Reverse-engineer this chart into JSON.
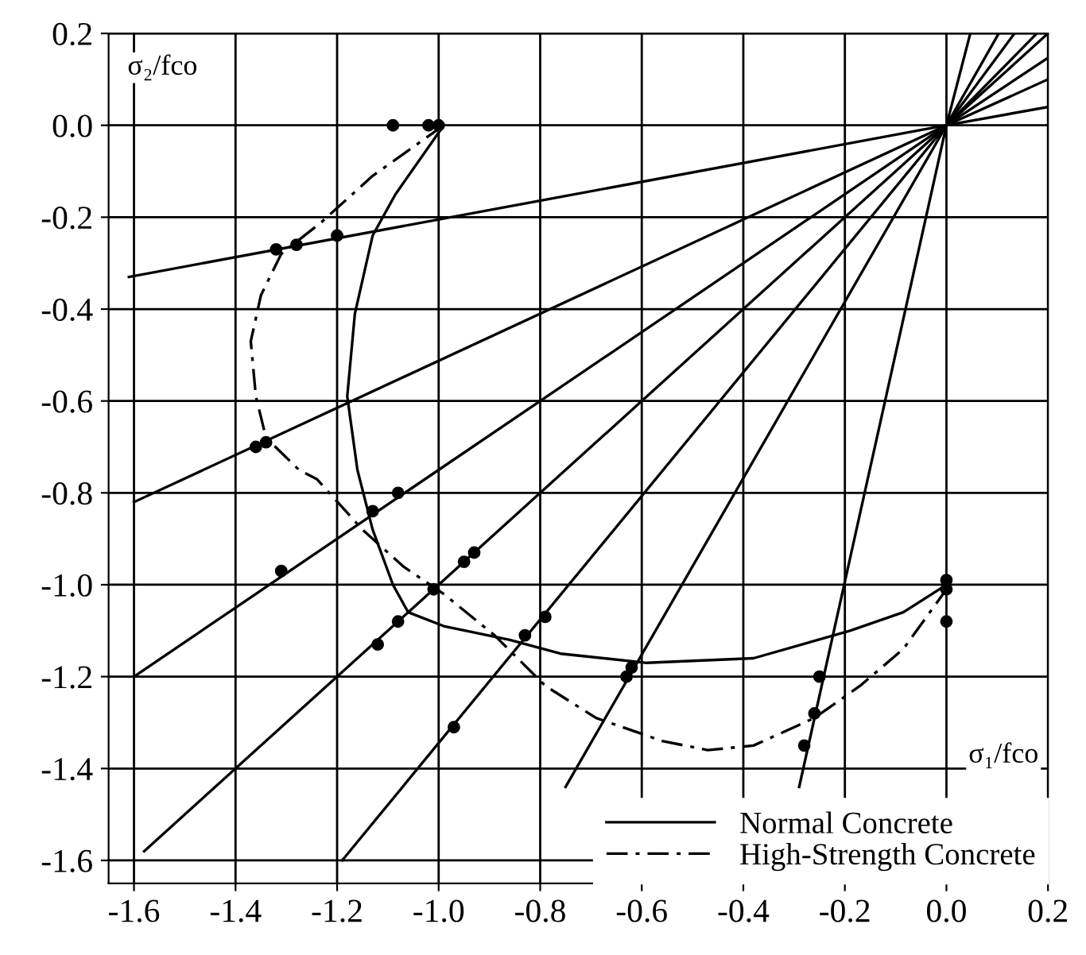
{
  "chart_data": {
    "type": "line",
    "xlabel": "σ₁/fco",
    "ylabel": "σ₂/fco",
    "xlim": [
      -1.65,
      0.2
    ],
    "ylim": [
      -1.65,
      0.2
    ],
    "xticks": [
      {
        "value": -1.6,
        "label": "-1.6"
      },
      {
        "value": -1.4,
        "label": "-1.4"
      },
      {
        "value": -1.2,
        "label": "-1.2"
      },
      {
        "value": -1.0,
        "label": "-1.0"
      },
      {
        "value": -0.8,
        "label": "-0.8"
      },
      {
        "value": -0.6,
        "label": "-0.6"
      },
      {
        "value": -0.4,
        "label": "-0.4"
      },
      {
        "value": -0.2,
        "label": "-0.2"
      },
      {
        "value": 0.0,
        "label": "0.0"
      },
      {
        "value": 0.2,
        "label": "0.2"
      }
    ],
    "yticks": [
      {
        "value": -1.6,
        "label": "-1.6"
      },
      {
        "value": -1.4,
        "label": "-1.4"
      },
      {
        "value": -1.2,
        "label": "-1.2"
      },
      {
        "value": -1.0,
        "label": "-1.0"
      },
      {
        "value": -0.8,
        "label": "-0.8"
      },
      {
        "value": -0.6,
        "label": "-0.6"
      },
      {
        "value": -0.4,
        "label": "-0.4"
      },
      {
        "value": -0.2,
        "label": "-0.2"
      },
      {
        "value": 0.0,
        "label": "0.0"
      },
      {
        "value": 0.2,
        "label": "0.2"
      }
    ],
    "grid": true,
    "legend": "bottom right",
    "series": [
      {
        "name": "Normal Concrete",
        "line_style": "solid",
        "color": "#000000",
        "x": [
          -0.99,
          -1.085,
          -1.13,
          -1.165,
          -1.18,
          -1.16,
          -1.13,
          -1.09,
          -1.06,
          -0.99,
          -0.86,
          -0.76,
          -0.59,
          -0.38,
          -0.19,
          -0.085,
          0.0
        ],
        "values": [
          0.0,
          -0.15,
          -0.24,
          -0.41,
          -0.59,
          -0.75,
          -0.88,
          -1.0,
          -1.06,
          -1.09,
          -1.12,
          -1.15,
          -1.17,
          -1.16,
          -1.1,
          -1.06,
          -1.0
        ]
      },
      {
        "name": "High-Strength Concrete",
        "line_style": "dashdot",
        "color": "#000000",
        "x": [
          -0.99,
          -1.13,
          -1.23,
          -1.31,
          -1.35,
          -1.37,
          -1.36,
          -1.34,
          -1.275,
          -1.24,
          -1.15,
          -1.07,
          -0.99,
          -0.89,
          -0.79,
          -0.69,
          -0.56,
          -0.47,
          -0.38,
          -0.26,
          -0.17,
          -0.085,
          0.0
        ],
        "values": [
          0.0,
          -0.11,
          -0.21,
          -0.28,
          -0.37,
          -0.47,
          -0.59,
          -0.68,
          -0.75,
          -0.77,
          -0.88,
          -0.96,
          -1.02,
          -1.11,
          -1.22,
          -1.29,
          -1.34,
          -1.36,
          -1.35,
          -1.29,
          -1.22,
          -1.14,
          -1.01
        ]
      },
      {
        "line_style": "solid",
        "color": "#000000",
        "x": [
          -1.61,
          0.0,
          0.2
        ],
        "values": [
          -0.33,
          0.0,
          0.04
        ]
      },
      {
        "line_style": "solid",
        "color": "#000000",
        "x": [
          -1.6,
          0.0,
          0.2
        ],
        "values": [
          -0.82,
          0.0,
          0.1
        ]
      },
      {
        "line_style": "solid",
        "color": "#000000",
        "x": [
          -1.6,
          0.0,
          0.2
        ],
        "values": [
          -1.2,
          0.0,
          0.147
        ]
      },
      {
        "line_style": "solid",
        "color": "#000000",
        "x": [
          -1.58,
          0.0,
          0.2
        ],
        "values": [
          -1.58,
          0.0,
          0.2
        ]
      },
      {
        "line_style": "solid",
        "color": "#000000",
        "x": [
          -1.19,
          0.0,
          0.134
        ],
        "values": [
          -1.6,
          0.0,
          0.2
        ]
      },
      {
        "line_style": "solid",
        "color": "#000000",
        "x": [
          -0.75,
          0.0,
          0.103
        ],
        "values": [
          -1.44,
          0.0,
          0.2
        ]
      },
      {
        "line_style": "solid",
        "color": "#000000",
        "x": [
          -0.29,
          0.0,
          0.047
        ],
        "values": [
          -1.44,
          0.0,
          0.2
        ]
      },
      {
        "line_style": "solid",
        "color": "#000000",
        "x": [
          0.0,
          0.178
        ],
        "values": [
          0.0,
          0.2
        ]
      },
      {
        "type": "scatter",
        "marker": "circle",
        "color": "#000000",
        "x": [
          -1.09,
          -1.02,
          -1.0,
          -1.32,
          -1.28,
          -1.2,
          -1.36,
          -1.34,
          -1.08,
          -1.13,
          -1.31,
          -0.95,
          -0.93,
          -1.01,
          -1.08,
          -1.12,
          -0.97,
          -0.83,
          -0.79,
          -0.62,
          -0.63,
          -0.25,
          -0.26,
          -0.28,
          0.0,
          0.0,
          0.0
        ],
        "values": [
          0.0,
          0.0,
          0.0,
          -0.27,
          -0.26,
          -0.24,
          -0.7,
          -0.69,
          -0.8,
          -0.84,
          -0.97,
          -0.95,
          -0.93,
          -1.01,
          -1.08,
          -1.13,
          -1.31,
          -1.11,
          -1.07,
          -1.18,
          -1.2,
          -1.2,
          -1.28,
          -1.35,
          -0.99,
          -1.01,
          -1.08
        ]
      }
    ]
  }
}
